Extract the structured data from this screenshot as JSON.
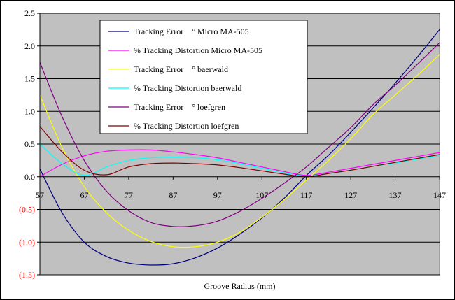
{
  "chart_data": {
    "type": "line",
    "title": "",
    "xlabel": "Groove Radius (mm)",
    "ylabel": "",
    "xlim": [
      57,
      147
    ],
    "ylim": [
      -1.5,
      2.5
    ],
    "x_ticks": [
      "57",
      "67",
      "77",
      "87",
      "97",
      "107",
      "117",
      "127",
      "137",
      "147"
    ],
    "y_ticks": [
      {
        "value": 2.5,
        "label": "2.5",
        "negative": false
      },
      {
        "value": 2.0,
        "label": "2.0",
        "negative": false
      },
      {
        "value": 1.5,
        "label": "1.5",
        "negative": false
      },
      {
        "value": 1.0,
        "label": "1.0",
        "negative": false
      },
      {
        "value": 0.5,
        "label": "0.5",
        "negative": false
      },
      {
        "value": 0.0,
        "label": "0.0",
        "negative": false
      },
      {
        "value": -0.5,
        "label": "(0.5)",
        "negative": true
      },
      {
        "value": -1.0,
        "label": "(1.0)",
        "negative": true
      },
      {
        "value": -1.5,
        "label": "(1.5)",
        "negative": true
      }
    ],
    "grid": "horizontal",
    "legend_position": "top-center",
    "colors": {
      "plot_background": "#c0c0c0",
      "negative_label": "#ff0000"
    },
    "series": [
      {
        "name": "Tracking Error    ° Micro MA-505",
        "color": "#000080",
        "x": [
          57,
          62,
          67,
          72,
          77,
          82,
          87,
          92,
          97,
          102,
          107,
          112,
          117,
          122,
          127,
          132,
          137,
          142,
          147
        ],
        "values": [
          0.12,
          -0.55,
          -1.0,
          -1.22,
          -1.32,
          -1.35,
          -1.33,
          -1.24,
          -1.09,
          -0.88,
          -0.63,
          -0.33,
          0.02,
          0.33,
          0.68,
          1.05,
          1.43,
          1.83,
          2.25
        ]
      },
      {
        "name": "% Tracking Distortion Micro MA-505",
        "color": "#ff00ff",
        "x": [
          57,
          62,
          67,
          72,
          77,
          82,
          87,
          92,
          97,
          102,
          107,
          112,
          117,
          122,
          127,
          132,
          137,
          142,
          147
        ],
        "values": [
          0.0,
          0.19,
          0.32,
          0.39,
          0.41,
          0.41,
          0.38,
          0.34,
          0.29,
          0.22,
          0.15,
          0.08,
          0.02,
          0.07,
          0.13,
          0.19,
          0.25,
          0.31,
          0.37
        ]
      },
      {
        "name": "Tracking Error    ° baerwald",
        "color": "#ffff00",
        "x": [
          57,
          62,
          67,
          72,
          77,
          82,
          87,
          92,
          97,
          102,
          107,
          112,
          117,
          122,
          127,
          132,
          137,
          142,
          147
        ],
        "values": [
          1.25,
          0.45,
          -0.15,
          -0.55,
          -0.82,
          -0.99,
          -1.07,
          -1.07,
          -1.0,
          -0.85,
          -0.62,
          -0.35,
          -0.05,
          0.25,
          0.58,
          0.95,
          1.25,
          1.55,
          1.87
        ]
      },
      {
        "name": "% Tracking Distortion baerwald",
        "color": "#00ffff",
        "x": [
          57,
          62,
          67,
          72,
          77,
          82,
          87,
          92,
          97,
          102,
          107,
          112,
          117,
          122,
          127,
          132,
          137,
          142,
          147
        ],
        "values": [
          0.5,
          0.2,
          0.02,
          0.15,
          0.25,
          0.29,
          0.3,
          0.29,
          0.26,
          0.2,
          0.13,
          0.06,
          0.01,
          0.05,
          0.1,
          0.16,
          0.21,
          0.27,
          0.32
        ]
      },
      {
        "name": "Tracking Error    ° loefgren",
        "color": "#800080",
        "x": [
          57,
          62,
          67,
          72,
          77,
          82,
          87,
          92,
          97,
          102,
          107,
          112,
          117,
          122,
          127,
          132,
          137,
          142,
          147
        ],
        "values": [
          1.75,
          0.92,
          0.25,
          -0.22,
          -0.52,
          -0.7,
          -0.76,
          -0.75,
          -0.68,
          -0.53,
          -0.33,
          -0.1,
          0.15,
          0.45,
          0.75,
          1.1,
          1.4,
          1.72,
          2.05
        ]
      },
      {
        "name": "% Tracking Distortion loefgren",
        "color": "#800000",
        "x": [
          57,
          62,
          67,
          72,
          77,
          82,
          87,
          92,
          97,
          102,
          107,
          112,
          117,
          122,
          127,
          132,
          137,
          142,
          147
        ],
        "values": [
          0.77,
          0.38,
          0.1,
          0.03,
          0.15,
          0.2,
          0.21,
          0.2,
          0.18,
          0.14,
          0.09,
          0.04,
          0.0,
          0.05,
          0.1,
          0.16,
          0.22,
          0.28,
          0.34
        ]
      }
    ]
  }
}
